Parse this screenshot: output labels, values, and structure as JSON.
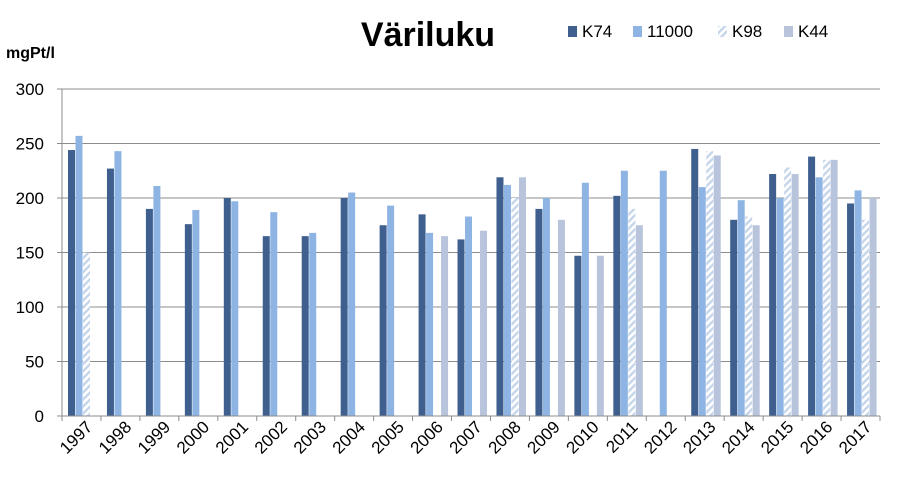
{
  "chart_data": {
    "type": "bar",
    "title": "Väriluku",
    "ylabel": "mgPt/l",
    "xlabel": "",
    "ylim": [
      0,
      300
    ],
    "yticks": [
      0,
      50,
      100,
      150,
      200,
      250,
      300
    ],
    "grid": true,
    "legend_position": "top-right",
    "categories": [
      "1997",
      "1998",
      "1999",
      "2000",
      "2001",
      "2002",
      "2003",
      "2004",
      "2005",
      "2006",
      "2007",
      "2008",
      "2009",
      "2010",
      "2011",
      "2012",
      "2013",
      "2014",
      "2015",
      "2016",
      "2017"
    ],
    "series": [
      {
        "name": "K74",
        "color": "#3F5F8F",
        "pattern": "solid",
        "values": [
          244,
          227,
          190,
          176,
          200,
          165,
          165,
          200,
          175,
          185,
          162,
          219,
          190,
          147,
          202,
          null,
          245,
          180,
          222,
          238,
          195
        ]
      },
      {
        "name": "11000",
        "color": "#8EB4E3",
        "pattern": "solid",
        "values": [
          257,
          243,
          211,
          189,
          197,
          187,
          168,
          205,
          193,
          168,
          183,
          212,
          200,
          214,
          225,
          225,
          210,
          198,
          200,
          219,
          207
        ]
      },
      {
        "name": "K98",
        "color": "#C5D5EA",
        "pattern": "hatched",
        "values": [
          150,
          null,
          null,
          null,
          null,
          null,
          null,
          null,
          null,
          null,
          null,
          200,
          null,
          null,
          190,
          null,
          243,
          183,
          228,
          235,
          180
        ]
      },
      {
        "name": "K44",
        "color": "#B7C4DC",
        "pattern": "solid",
        "values": [
          null,
          null,
          null,
          null,
          null,
          null,
          null,
          null,
          null,
          165,
          170,
          219,
          180,
          147,
          175,
          null,
          239,
          175,
          222,
          235,
          200
        ]
      }
    ]
  }
}
